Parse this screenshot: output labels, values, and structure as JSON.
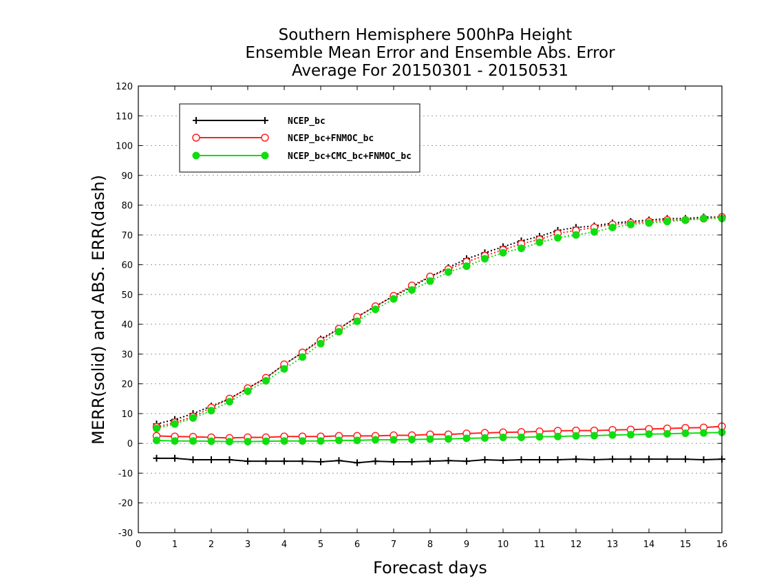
{
  "chart_data": {
    "type": "line",
    "title_lines": [
      "Southern Hemisphere 500hPa Height",
      "Ensemble Mean Error and Ensemble Abs. Error",
      "Average For 20150301 - 20150531"
    ],
    "xlabel": "Forecast days",
    "ylabel": "MERR(solid) and ABS. ERR(dash)",
    "xlim": [
      0,
      16
    ],
    "ylim": [
      -30,
      120
    ],
    "x_ticks": [
      "0",
      "1",
      "2",
      "3",
      "4",
      "5",
      "6",
      "7",
      "8",
      "9",
      "10",
      "11",
      "12",
      "13",
      "14",
      "15",
      "16"
    ],
    "y_ticks": [
      "120",
      "110",
      "100",
      "90",
      "80",
      "70",
      "60",
      "50",
      "40",
      "30",
      "20",
      "10",
      "0",
      "-10",
      "-20",
      "-30"
    ],
    "grid": "horizontal dotted",
    "legend_position": "top-left",
    "x": [
      0.5,
      1,
      1.5,
      2,
      2.5,
      3,
      3.5,
      4,
      4.5,
      5,
      5.5,
      6,
      6.5,
      7,
      7.5,
      8,
      8.5,
      9,
      9.5,
      10,
      10.5,
      11,
      11.5,
      12,
      12.5,
      13,
      13.5,
      14,
      14.5,
      15,
      15.5,
      16
    ],
    "series": [
      {
        "name": "NCEP_bc",
        "color": "#000000",
        "marker": "plus",
        "merr": [
          -5,
          -5,
          -5.5,
          -5.5,
          -5.5,
          -6,
          -6,
          -6,
          -6,
          -6.2,
          -5.8,
          -6.5,
          -6,
          -6.2,
          -6.2,
          -6,
          -5.8,
          -6,
          -5.5,
          -5.7,
          -5.5,
          -5.5,
          -5.5,
          -5.3,
          -5.5,
          -5.3,
          -5.3,
          -5.3,
          -5.3,
          -5.3,
          -5.5,
          -5.3
        ],
        "abs_err": [
          6.5,
          8,
          10,
          12.5,
          15,
          18.5,
          22,
          26.5,
          30.5,
          35,
          38.5,
          42.5,
          46,
          49.5,
          52.5,
          56,
          59,
          62,
          64,
          66,
          68,
          69.5,
          71.5,
          72.5,
          73,
          74,
          74.5,
          75,
          75.5,
          75.5,
          76,
          76
        ]
      },
      {
        "name": "NCEP_bc+FNMOC_bc",
        "color": "#ff2020",
        "marker": "open-circle",
        "merr": [
          2.5,
          2.3,
          2.2,
          2,
          1.8,
          2,
          2,
          2.3,
          2.3,
          2.3,
          2.5,
          2.5,
          2.5,
          2.7,
          2.7,
          3,
          3,
          3.3,
          3.5,
          3.7,
          3.8,
          4,
          4.2,
          4.3,
          4.3,
          4.5,
          4.6,
          4.8,
          5,
          5.2,
          5.3,
          5.7
        ],
        "abs_err": [
          5.5,
          7,
          9,
          12,
          15,
          18.5,
          22,
          26.5,
          30.5,
          34.5,
          38.5,
          42.5,
          46,
          49.5,
          53,
          56,
          58.5,
          61,
          63,
          65,
          67,
          68.5,
          70.5,
          71.5,
          72.5,
          73.5,
          74,
          74.5,
          75,
          75,
          75.5,
          76
        ]
      },
      {
        "name": "NCEP_bc+CMC_bc+FNMOC_bc",
        "color": "#10dd10",
        "marker": "filled-circle",
        "merr": [
          1,
          0.8,
          0.8,
          0.7,
          0.6,
          0.6,
          0.7,
          0.8,
          0.8,
          0.8,
          1,
          1,
          1.2,
          1.2,
          1.3,
          1.4,
          1.5,
          1.7,
          1.8,
          2,
          2,
          2.2,
          2.3,
          2.5,
          2.6,
          2.8,
          2.9,
          3.1,
          3.2,
          3.4,
          3.5,
          3.7
        ],
        "abs_err": [
          5,
          6.5,
          8.5,
          11,
          14,
          17.5,
          21,
          25,
          29,
          33.5,
          37.5,
          41,
          45,
          48.5,
          51.5,
          54.5,
          57.5,
          59.5,
          62,
          64,
          65.5,
          67.5,
          69,
          70,
          71,
          72.5,
          73.5,
          74,
          74.5,
          75,
          75.5,
          75.5
        ]
      }
    ]
  }
}
